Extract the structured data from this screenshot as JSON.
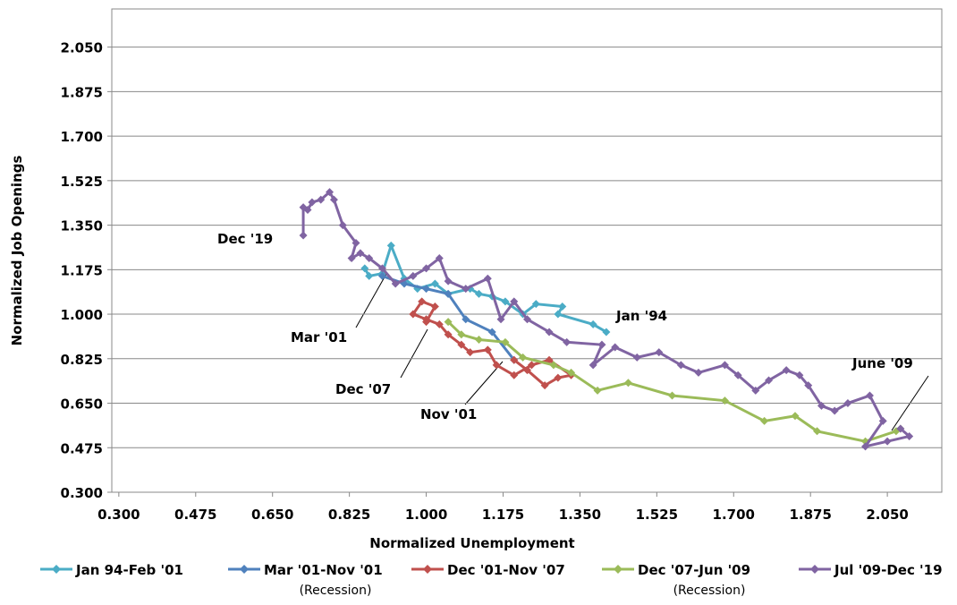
{
  "chart_data": {
    "type": "line",
    "x_label": "Normalized Unemployment",
    "y_label": "Normalized Job Openings",
    "xlim": [
      0.284,
      2.174
    ],
    "ylim": [
      0.3,
      2.2
    ],
    "grid": true,
    "xticks": [
      {
        "value": 0.3,
        "label": "0.300"
      },
      {
        "value": 0.475,
        "label": "0.475"
      },
      {
        "value": 0.65,
        "label": "0.650"
      },
      {
        "value": 0.825,
        "label": "0.825"
      },
      {
        "value": 1.0,
        "label": "1.000"
      },
      {
        "value": 1.175,
        "label": "1.175"
      },
      {
        "value": 1.35,
        "label": "1.350"
      },
      {
        "value": 1.525,
        "label": "1.525"
      },
      {
        "value": 1.7,
        "label": "1.700"
      },
      {
        "value": 1.875,
        "label": "1.875"
      },
      {
        "value": 2.05,
        "label": "2.050"
      }
    ],
    "yticks": [
      {
        "value": 0.3,
        "label": "0.300"
      },
      {
        "value": 0.475,
        "label": "0.475"
      },
      {
        "value": 0.65,
        "label": "0.650"
      },
      {
        "value": 0.825,
        "label": "0.825"
      },
      {
        "value": 1.0,
        "label": "1.000"
      },
      {
        "value": 1.175,
        "label": "1.175"
      },
      {
        "value": 1.35,
        "label": "1.350"
      },
      {
        "value": 1.525,
        "label": "1.525"
      },
      {
        "value": 1.7,
        "label": "1.700"
      },
      {
        "value": 1.875,
        "label": "1.875"
      },
      {
        "value": 2.05,
        "label": "2.050"
      }
    ],
    "series": [
      {
        "name": "Jan 94-Feb '01",
        "color": "#4bacc6",
        "x": [
          1.41,
          1.38,
          1.3,
          1.31,
          1.25,
          1.22,
          1.18,
          1.15,
          1.12,
          1.1,
          1.05,
          1.02,
          0.98,
          0.95,
          0.92,
          0.9,
          0.87,
          0.86
        ],
        "values": [
          0.93,
          0.96,
          1.0,
          1.03,
          1.04,
          1.0,
          1.05,
          1.07,
          1.08,
          1.1,
          1.08,
          1.12,
          1.1,
          1.14,
          1.27,
          1.16,
          1.15,
          1.18
        ]
      },
      {
        "name": "Mar '01-Nov '01",
        "note": "(Recession)",
        "color": "#4f81bd",
        "x": [
          0.9,
          0.95,
          1.0,
          1.05,
          1.09,
          1.15,
          1.2
        ],
        "values": [
          1.15,
          1.12,
          1.1,
          1.08,
          0.98,
          0.93,
          0.82
        ]
      },
      {
        "name": "Dec '01-Nov '07",
        "color": "#c0504d",
        "x": [
          1.2,
          1.23,
          1.27,
          1.3,
          1.33,
          1.28,
          1.24,
          1.2,
          1.16,
          1.14,
          1.1,
          1.08,
          1.05,
          1.03,
          1.0,
          0.97,
          0.99,
          1.02,
          1.0
        ],
        "values": [
          0.82,
          0.78,
          0.72,
          0.75,
          0.76,
          0.82,
          0.8,
          0.76,
          0.8,
          0.86,
          0.85,
          0.88,
          0.92,
          0.96,
          0.98,
          1.0,
          1.05,
          1.03,
          0.97
        ]
      },
      {
        "name": "Dec '07-Jun '09",
        "note": "(Recession)",
        "color": "#9bbb59",
        "x": [
          1.05,
          1.08,
          1.12,
          1.18,
          1.22,
          1.29,
          1.33,
          1.39,
          1.46,
          1.56,
          1.68,
          1.77,
          1.84,
          1.89,
          2.0,
          2.07,
          2.08
        ],
        "values": [
          0.97,
          0.92,
          0.9,
          0.89,
          0.83,
          0.8,
          0.77,
          0.7,
          0.73,
          0.68,
          0.66,
          0.58,
          0.6,
          0.54,
          0.5,
          0.54,
          0.55
        ]
      },
      {
        "name": "Jul '09-Dec '19",
        "color": "#8064a2",
        "x": [
          2.08,
          2.1,
          2.05,
          2.0,
          2.04,
          2.01,
          1.96,
          1.93,
          1.9,
          1.87,
          1.85,
          1.82,
          1.78,
          1.75,
          1.71,
          1.68,
          1.62,
          1.58,
          1.53,
          1.48,
          1.43,
          1.38,
          1.4,
          1.32,
          1.28,
          1.23,
          1.2,
          1.17,
          1.14,
          1.09,
          1.05,
          1.03,
          1.0,
          0.97,
          0.93,
          0.9,
          0.87,
          0.85,
          0.83,
          0.84,
          0.81,
          0.79,
          0.78,
          0.76,
          0.74,
          0.73,
          0.72,
          0.72
        ],
        "values": [
          0.55,
          0.52,
          0.5,
          0.48,
          0.58,
          0.68,
          0.65,
          0.62,
          0.64,
          0.72,
          0.76,
          0.78,
          0.74,
          0.7,
          0.76,
          0.8,
          0.77,
          0.8,
          0.85,
          0.83,
          0.87,
          0.8,
          0.88,
          0.89,
          0.93,
          0.98,
          1.05,
          0.98,
          1.14,
          1.1,
          1.13,
          1.22,
          1.18,
          1.15,
          1.12,
          1.18,
          1.22,
          1.24,
          1.22,
          1.28,
          1.35,
          1.45,
          1.48,
          1.45,
          1.44,
          1.41,
          1.42,
          1.31
        ]
      }
    ],
    "annotations": [
      "Jan '94",
      "Mar '01",
      "Dec '07",
      "Nov '01",
      "June '09",
      "Dec '19"
    ]
  }
}
